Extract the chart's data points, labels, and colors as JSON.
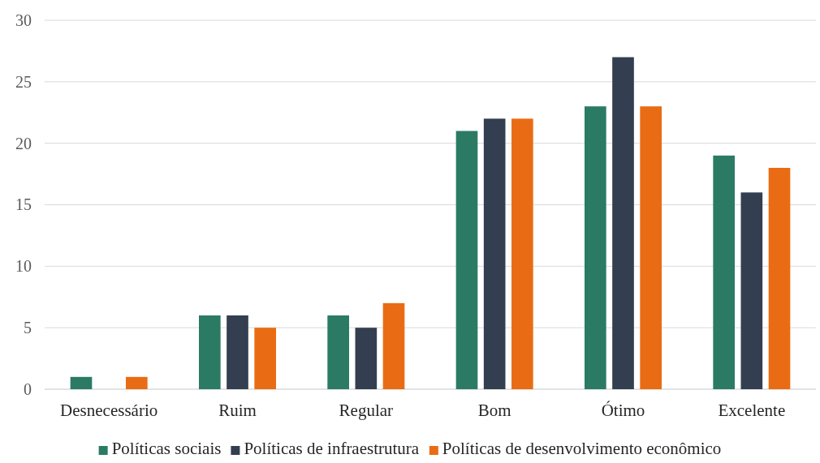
{
  "chart_data": {
    "type": "bar",
    "categories": [
      "Desnecessário",
      "Ruim",
      "Regular",
      "Bom",
      "Ótimo",
      "Excelente"
    ],
    "series": [
      {
        "name": "Políticas sociais",
        "color": "#2b7a64",
        "values": [
          1,
          6,
          6,
          21,
          23,
          19
        ]
      },
      {
        "name": "Políticas de infraestrutura",
        "color": "#333f50",
        "values": [
          0,
          6,
          5,
          22,
          27,
          16
        ]
      },
      {
        "name": "Políticas de desenvolvimento econômico",
        "color": "#e96c14",
        "values": [
          1,
          5,
          7,
          22,
          23,
          18
        ]
      }
    ],
    "ylim": [
      0,
      30
    ],
    "yticks": [
      0,
      5,
      10,
      15,
      20,
      25,
      30
    ],
    "grid": "y",
    "legend": "bottom"
  }
}
